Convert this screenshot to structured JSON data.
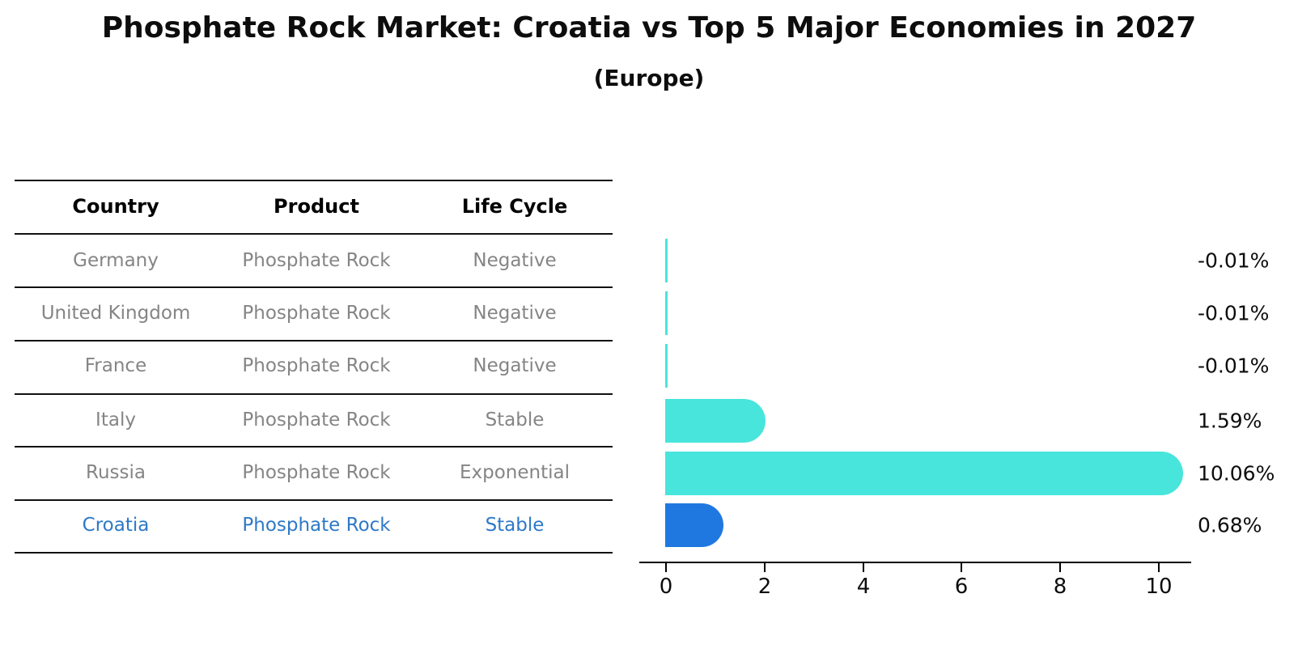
{
  "header": {
    "title": "Phosphate Rock Market: Croatia vs Top 5 Major Economies in 2027",
    "subtitle": "(Europe)"
  },
  "table": {
    "columns": [
      "Country",
      "Product",
      "Life Cycle"
    ],
    "rows": [
      {
        "country": "Germany",
        "product": "Phosphate Rock",
        "life_cycle": "Negative",
        "highlight": false
      },
      {
        "country": "United Kingdom",
        "product": "Phosphate Rock",
        "life_cycle": "Negative",
        "highlight": false
      },
      {
        "country": "France",
        "product": "Phosphate Rock",
        "life_cycle": "Negative",
        "highlight": false
      },
      {
        "country": "Italy",
        "product": "Phosphate Rock",
        "life_cycle": "Stable",
        "highlight": false
      },
      {
        "country": "Russia",
        "product": "Phosphate Rock",
        "life_cycle": "Exponential",
        "highlight": false
      },
      {
        "country": "Croatia",
        "product": "Phosphate Rock",
        "life_cycle": "Stable",
        "highlight": true
      }
    ]
  },
  "chart_data": {
    "type": "bar",
    "orientation": "horizontal",
    "title": "Phosphate Rock Market: Croatia vs Top 5 Major Economies in 2027",
    "subtitle": "(Europe)",
    "xlabel": "",
    "ylabel": "",
    "categories": [
      "Germany",
      "United Kingdom",
      "France",
      "Italy",
      "Russia",
      "Croatia"
    ],
    "values": [
      -0.01,
      -0.01,
      -0.01,
      1.59,
      10.06,
      0.68
    ],
    "value_labels": [
      "-0.01%",
      "-0.01%",
      "-0.01%",
      "1.59%",
      "10.06%",
      "0.68%"
    ],
    "xticks": [
      0,
      2,
      4,
      6,
      8,
      10
    ],
    "xlim": [
      0,
      10.6
    ],
    "grid": "off",
    "legend": "none",
    "bars": [
      {
        "label": "Germany",
        "value": -0.01,
        "color": "#48e5dc",
        "highlight": false
      },
      {
        "label": "United Kingdom",
        "value": -0.01,
        "color": "#48e5dc",
        "highlight": false
      },
      {
        "label": "France",
        "value": -0.01,
        "color": "#48e5dc",
        "highlight": false
      },
      {
        "label": "Italy",
        "value": 1.59,
        "color": "#48e5dc",
        "highlight": false
      },
      {
        "label": "Russia",
        "value": 10.06,
        "color": "#48e5dc",
        "highlight": false
      },
      {
        "label": "Croatia",
        "value": 0.68,
        "color": "#1f78e0",
        "highlight": true
      }
    ]
  },
  "colors": {
    "bar_default": "#48e5dc",
    "bar_highlight": "#1f78e0",
    "highlight_text": "#2e79c7",
    "row_text": "#858585",
    "axis_text": "#0d0d0d"
  }
}
